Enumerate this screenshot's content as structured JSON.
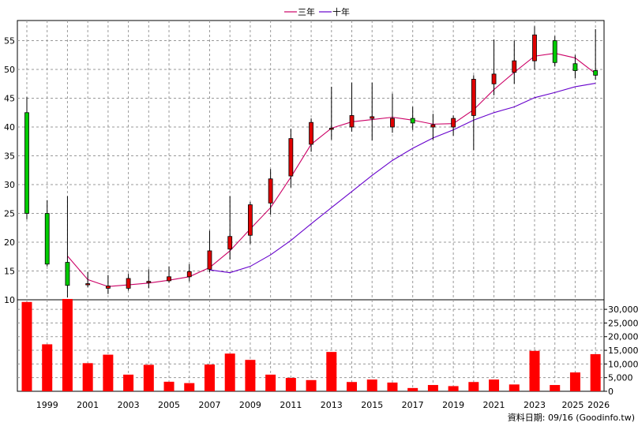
{
  "chart_data": [
    {
      "type": "candlestick",
      "grid": true,
      "legend": {
        "placement": "top-center"
      },
      "x_ticks": [
        "1999",
        "2001",
        "2003",
        "2005",
        "2007",
        "2009",
        "2011",
        "2013",
        "2015",
        "2017",
        "2019",
        "2021",
        "2023",
        "2025",
        "2026"
      ],
      "y_ticks": [
        "10",
        "15",
        "20",
        "25",
        "30",
        "35",
        "40",
        "45",
        "50",
        "55"
      ],
      "ylim": [
        10,
        58.5
      ],
      "candles": [
        {
          "x": 1998,
          "open": 42.5,
          "close": 25.0,
          "high": 45.2,
          "low": 24.0
        },
        {
          "x": 1999,
          "open": 25.0,
          "close": 16.2,
          "high": 27.3,
          "low": 15.8
        },
        {
          "x": 2000,
          "open": 16.5,
          "close": 12.5,
          "high": 28.0,
          "low": 10.4
        },
        {
          "x": 2001,
          "open": 12.8,
          "close": 12.8,
          "high": 14.8,
          "low": 12.2
        },
        {
          "x": 2002,
          "open": 12.0,
          "close": 12.4,
          "high": 14.3,
          "low": 11.0
        },
        {
          "x": 2003,
          "open": 12.0,
          "close": 13.7,
          "high": 14.5,
          "low": 11.6
        },
        {
          "x": 2004,
          "open": 13.2,
          "close": 13.2,
          "high": 15.3,
          "low": 12.0
        },
        {
          "x": 2005,
          "open": 13.3,
          "close": 14.0,
          "high": 15.8,
          "low": 13.0
        },
        {
          "x": 2006,
          "open": 14.0,
          "close": 14.9,
          "high": 16.2,
          "low": 13.2
        },
        {
          "x": 2007,
          "open": 15.3,
          "close": 18.5,
          "high": 22.0,
          "low": 14.8
        },
        {
          "x": 2008,
          "open": 18.8,
          "close": 21.0,
          "high": 28.0,
          "low": 17.0
        },
        {
          "x": 2009,
          "open": 21.2,
          "close": 26.5,
          "high": 27.0,
          "low": 19.7
        },
        {
          "x": 2010,
          "open": 26.8,
          "close": 31.0,
          "high": 32.7,
          "low": 24.8
        },
        {
          "x": 2011,
          "open": 31.5,
          "close": 38.0,
          "high": 39.7,
          "low": 29.5
        },
        {
          "x": 2012,
          "open": 37.0,
          "close": 40.8,
          "high": 41.5,
          "low": 35.7
        },
        {
          "x": 2013,
          "open": 39.8,
          "close": 39.8,
          "high": 47.0,
          "low": 37.8
        },
        {
          "x": 2014,
          "open": 40.0,
          "close": 42.0,
          "high": 47.7,
          "low": 39.2
        },
        {
          "x": 2015,
          "open": 41.5,
          "close": 41.8,
          "high": 47.7,
          "low": 37.7
        },
        {
          "x": 2016,
          "open": 40.0,
          "close": 41.5,
          "high": 45.8,
          "low": 39.0
        },
        {
          "x": 2017,
          "open": 41.5,
          "close": 40.7,
          "high": 43.5,
          "low": 39.5
        },
        {
          "x": 2018,
          "open": 40.0,
          "close": 40.4,
          "high": 42.3,
          "low": 37.8
        },
        {
          "x": 2019,
          "open": 40.0,
          "close": 41.5,
          "high": 42.0,
          "low": 38.5
        },
        {
          "x": 2020,
          "open": 42.0,
          "close": 48.3,
          "high": 49.0,
          "low": 36.0
        },
        {
          "x": 2021,
          "open": 47.5,
          "close": 49.2,
          "high": 55.2,
          "low": 45.5
        },
        {
          "x": 2022,
          "open": 49.5,
          "close": 51.5,
          "high": 55.0,
          "low": 47.5
        },
        {
          "x": 2023,
          "open": 51.5,
          "close": 56.0,
          "high": 57.5,
          "low": 50.0
        },
        {
          "x": 2024,
          "open": 55.0,
          "close": 51.2,
          "high": 55.8,
          "low": 50.5
        },
        {
          "x": 2025,
          "open": 51.0,
          "close": 49.8,
          "high": 52.5,
          "low": 48.5
        },
        {
          "x": 2026,
          "open": 49.8,
          "close": 49.0,
          "high": 57.0,
          "low": 48.2
        }
      ],
      "series": [
        {
          "name": "三年",
          "color": "#cc0066",
          "x": [
            2000,
            2001,
            2002,
            2003,
            2004,
            2005,
            2006,
            2007,
            2008,
            2009,
            2010,
            2011,
            2012,
            2013,
            2014,
            2015,
            2016,
            2017,
            2018,
            2019,
            2020,
            2021,
            2022,
            2023,
            2024,
            2025,
            2026
          ],
          "values": [
            17.6,
            13.5,
            12.3,
            12.6,
            12.9,
            13.4,
            14.0,
            15.6,
            18.5,
            22.3,
            26.0,
            31.3,
            37.0,
            39.8,
            40.9,
            41.3,
            41.7,
            41.2,
            40.5,
            40.6,
            43.0,
            46.5,
            49.5,
            52.3,
            52.8,
            52.0,
            49.3
          ]
        },
        {
          "name": "十年",
          "color": "#6600cc",
          "x": [
            2007,
            2008,
            2009,
            2010,
            2011,
            2012,
            2013,
            2014,
            2015,
            2016,
            2017,
            2018,
            2019,
            2020,
            2021,
            2022,
            2023,
            2024,
            2025,
            2026
          ],
          "values": [
            15.2,
            14.7,
            15.8,
            17.8,
            20.3,
            23.2,
            26.0,
            28.8,
            31.6,
            34.2,
            36.3,
            38.1,
            39.5,
            41.2,
            42.5,
            43.5,
            45.1,
            46.0,
            47.0,
            47.6
          ]
        }
      ]
    },
    {
      "type": "bar",
      "color": "#ff0000",
      "y_ticks": [
        "0",
        "5,000",
        "10,000",
        "15,000",
        "20,000",
        "25,000",
        "30,000"
      ],
      "ylim": [
        0,
        33500
      ],
      "x": [
        1998,
        1999,
        2000,
        2001,
        2002,
        2003,
        2004,
        2005,
        2006,
        2007,
        2008,
        2009,
        2010,
        2011,
        2012,
        2013,
        2014,
        2015,
        2016,
        2017,
        2018,
        2019,
        2020,
        2021,
        2022,
        2023,
        2024,
        2025,
        2026
      ],
      "values": [
        32700,
        17200,
        33800,
        10300,
        13400,
        6100,
        9700,
        3500,
        3000,
        9800,
        13800,
        11500,
        6100,
        4900,
        4100,
        14400,
        3400,
        4300,
        3200,
        1200,
        2300,
        1900,
        3400,
        4300,
        2500,
        14800,
        2300,
        6900,
        13600
      ]
    }
  ],
  "legend": [
    {
      "label": "三年",
      "color": "#cc0066"
    },
    {
      "label": "十年",
      "color": "#6600cc"
    }
  ],
  "footer": {
    "source": "資料日期: 09/16 (Goodinfo.tw)"
  }
}
